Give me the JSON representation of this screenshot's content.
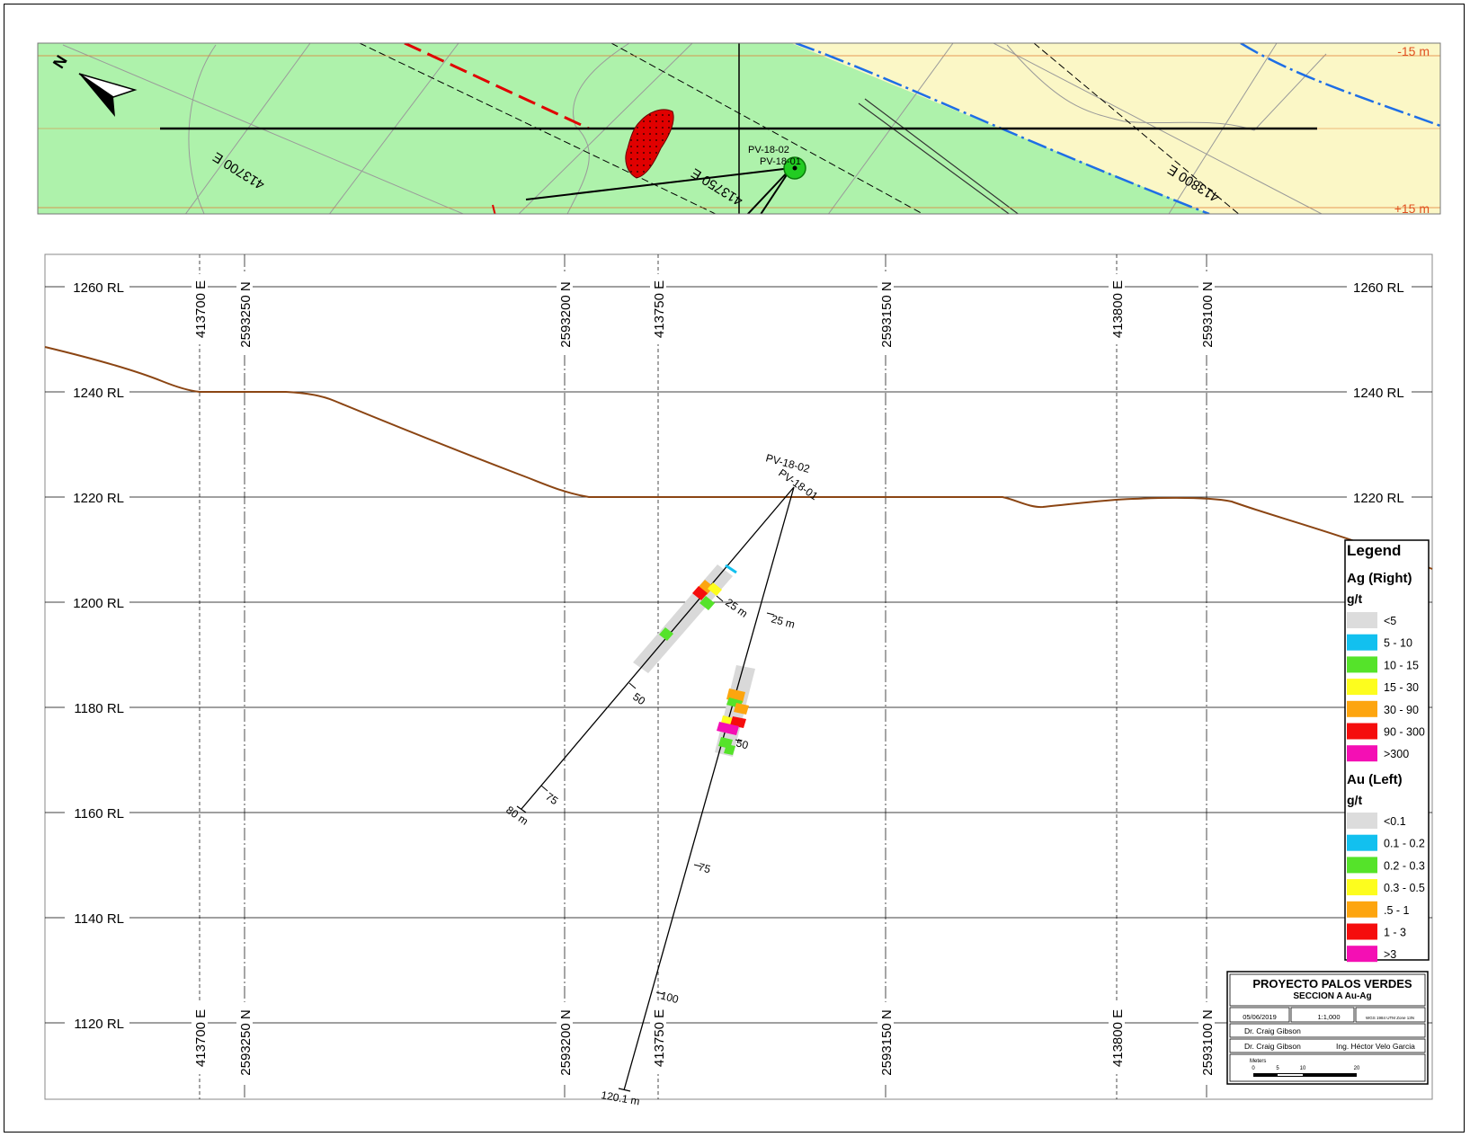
{
  "plan": {
    "north_label": "N",
    "offset_top": "-15 m",
    "offset_bottom": "+15 m",
    "easting_labels": [
      "413700 E",
      "413750 E",
      "413800 E"
    ],
    "hole_labels": [
      "PV-18-02",
      "PV-18-01"
    ],
    "colors": {
      "green_zone": "#aef2ab",
      "yellow_zone": "#fbf7c6",
      "fault_red": "#e00000",
      "contact_blue": "#1e6ee6",
      "orebody": "#e00000",
      "collar": "#22cc22"
    }
  },
  "section": {
    "rl_labels": [
      "1260 RL",
      "1240 RL",
      "1220 RL",
      "1200 RL",
      "1180 RL",
      "1160 RL",
      "1140 RL",
      "1120 RL"
    ],
    "grid_labels": [
      "413700 E",
      "2593250 N",
      "2593200 N",
      "413750 E",
      "2593150 N",
      "413800 E",
      "2593100 N"
    ],
    "topography_color": "#8b4513",
    "holes": [
      {
        "name": "PV-18-02",
        "display_name": "PV-18-02",
        "end_depth_label": "80 m",
        "depth_ticks": [
          "25 m",
          "50",
          "75"
        ]
      },
      {
        "name": "PV-18-01",
        "display_name": "PV-18-01",
        "end_depth_label": "120.1 m",
        "depth_ticks": [
          "25 m",
          "50",
          "75",
          "100"
        ]
      }
    ]
  },
  "legend": {
    "title": "Legend",
    "ag_title": "Ag (Right)",
    "ag_unit": "g/t",
    "ag_items": [
      {
        "label": "<5",
        "color": "#dcdcdc"
      },
      {
        "label": "5 - 10",
        "color": "#12c0ef"
      },
      {
        "label": "10 - 15",
        "color": "#55e32a"
      },
      {
        "label": "15 - 30",
        "color": "#fdfd1e"
      },
      {
        "label": "30 - 90",
        "color": "#fda50f"
      },
      {
        "label": "90 - 300",
        "color": "#f50d0d"
      },
      {
        "label": ">300",
        "color": "#f40fb4"
      }
    ],
    "au_title": "Au (Left)",
    "au_unit": "g/t",
    "au_items": [
      {
        "label": "<0.1",
        "color": "#dcdcdc"
      },
      {
        "label": "0.1 - 0.2",
        "color": "#12c0ef"
      },
      {
        "label": "0.2 - 0.3",
        "color": "#55e32a"
      },
      {
        "label": "0.3 - 0.5",
        "color": "#fdfd1e"
      },
      {
        "label": ".5 - 1",
        "color": "#fda50f"
      },
      {
        "label": "1 - 3",
        "color": "#f50d0d"
      },
      {
        "label": ">3",
        "color": "#f40fb4"
      }
    ]
  },
  "title_block": {
    "project": "PROYECTO PALOS VERDES",
    "section": "SECCION A Au-Ag",
    "date": "05/06/2019",
    "scale": "1:1,000",
    "datum": "WGS 1984 UTM Zone 13N",
    "drawn_by": "Dr. Craig Gibson",
    "author": "Dr. Craig Gibson",
    "reviewer": "Ing. Héctor Velo Garcia",
    "scale_units": "Meters",
    "scale_ticks": [
      "0",
      "5",
      "10",
      "20"
    ]
  }
}
